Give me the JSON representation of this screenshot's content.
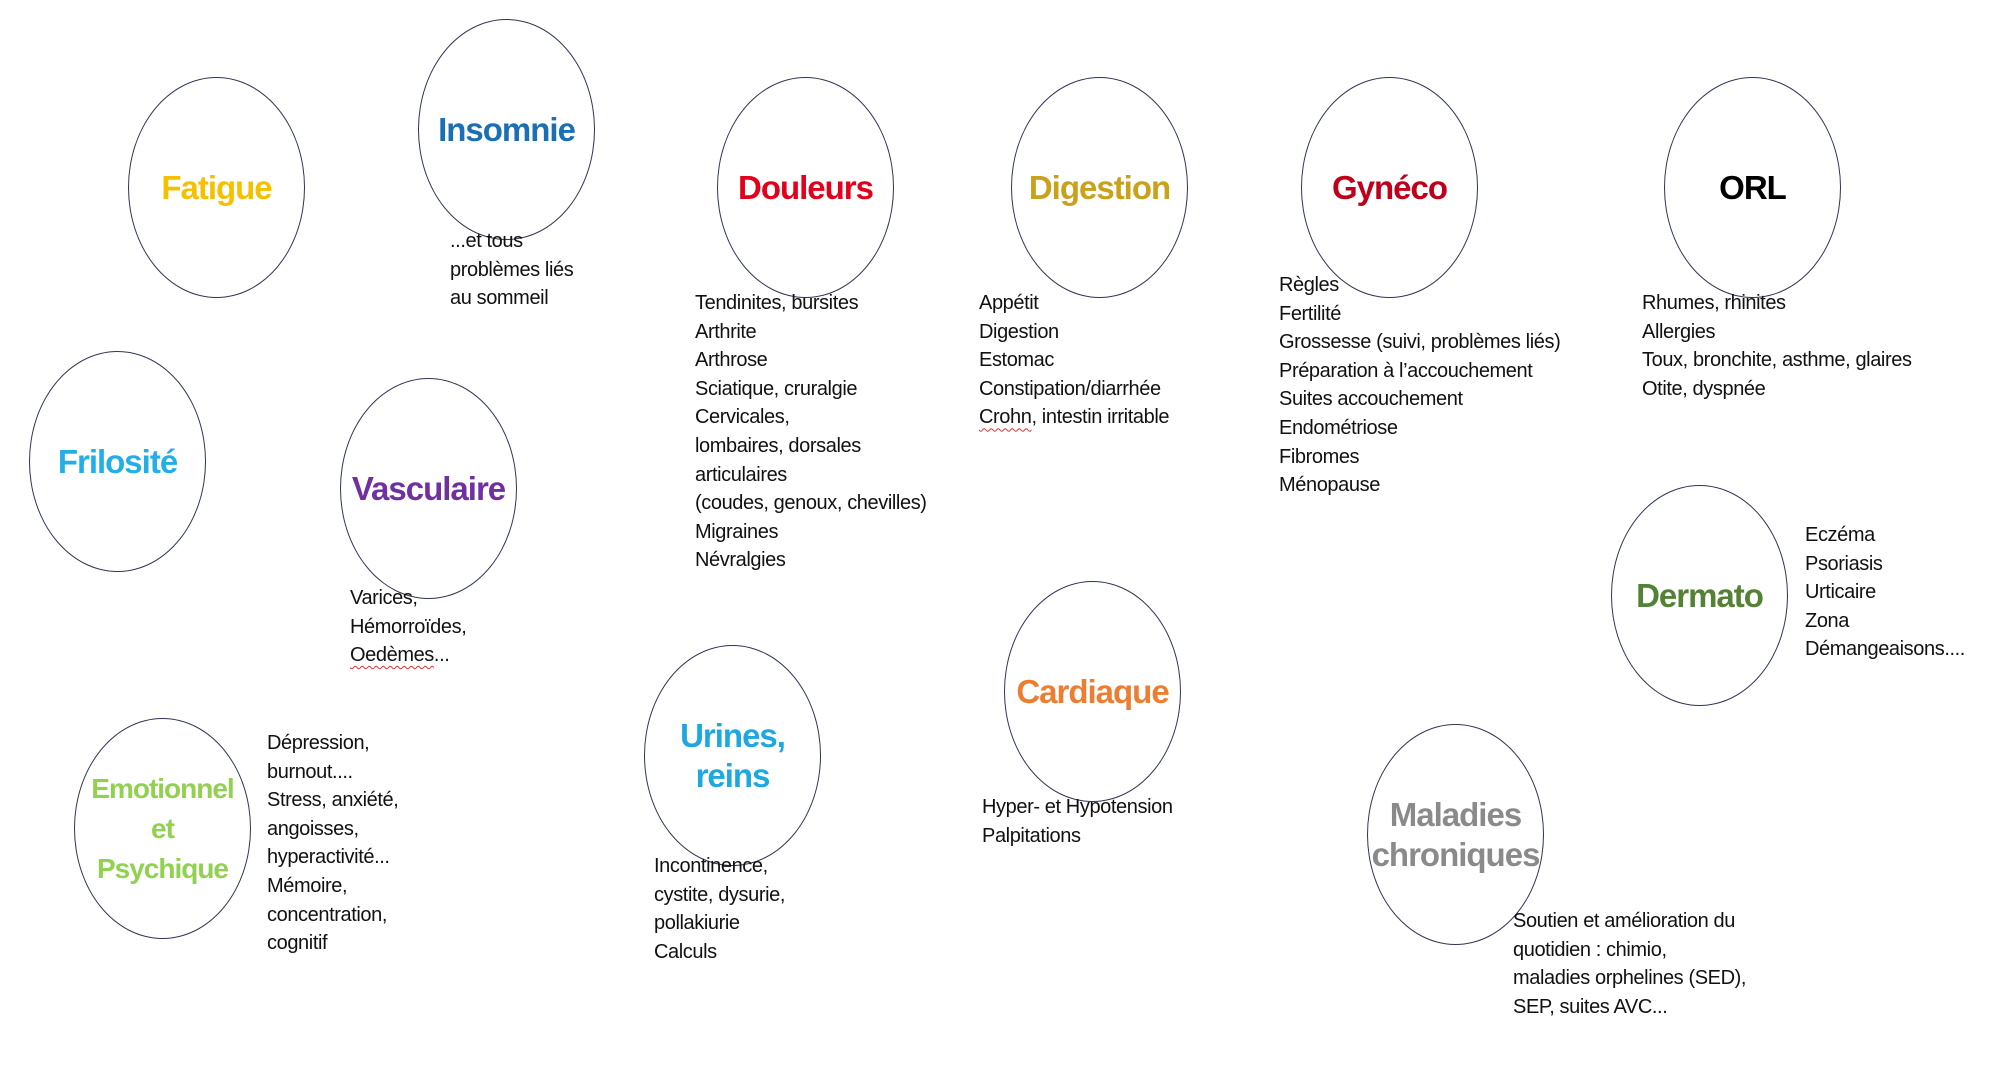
{
  "topics": [
    {
      "id": "fatigue",
      "title": [
        "Fatigue"
      ],
      "color": "#f5c000",
      "lines": []
    },
    {
      "id": "insomnie",
      "title": [
        "Insomnie"
      ],
      "color": "#1a6fb5",
      "lines": [
        "...et tous",
        "problèmes liés",
        "au sommeil"
      ]
    },
    {
      "id": "douleurs",
      "title": [
        "Douleurs"
      ],
      "color": "#e3001b",
      "lines": [
        "Tendinites, bursites",
        "Arthrite",
        "Arthrose",
        "Sciatique, cruralgie",
        "Cervicales,",
        "lombaires, dorsales",
        "articulaires",
        "(coudes, genoux, chevilles)",
        "Migraines",
        "Névralgies"
      ]
    },
    {
      "id": "digestion",
      "title": [
        "Digestion"
      ],
      "color": "#c9a11a",
      "lines": [
        "Appétit",
        "Digestion",
        "Estomac",
        "Constipation/diarrhée",
        "Crohn, intestin irritable"
      ]
    },
    {
      "id": "gyneco",
      "title": [
        "Gynéco"
      ],
      "color": "#c0001a",
      "lines": [
        "Règles",
        "Fertilité",
        "Grossesse (suivi, problèmes liés)",
        "Préparation à l’accouchement",
        "Suites accouchement",
        "Endométriose",
        "Fibromes",
        "Ménopause"
      ]
    },
    {
      "id": "orl",
      "title": [
        "ORL"
      ],
      "color": "#000000",
      "lines": [
        "Rhumes, rhinites",
        "Allergies",
        "Toux, bronchite, asthme, glaires",
        "Otite, dyspnée"
      ]
    },
    {
      "id": "frilosite",
      "title": [
        "Frilosité"
      ],
      "color": "#22aee6",
      "lines": []
    },
    {
      "id": "vasculaire",
      "title": [
        "Vasculaire"
      ],
      "color": "#7030a0",
      "lines": [
        "Varices,",
        "Hémorroïdes,",
        "Oedèmes..."
      ]
    },
    {
      "id": "dermato",
      "title": [
        "Dermato"
      ],
      "color": "#538135",
      "lines": [
        "Eczéma",
        "Psoriasis",
        "Urticaire",
        "Zona",
        "Démangeaisons...."
      ]
    },
    {
      "id": "cardiaque",
      "title": [
        "Cardiaque"
      ],
      "color": "#ed7d31",
      "lines": [
        "Hyper- et Hypotension",
        "Palpitations"
      ]
    },
    {
      "id": "urines",
      "title": [
        "Urines,",
        "reins"
      ],
      "color": "#1fa8e0",
      "lines": [
        "Incontinence,",
        "cystite, dysurie,",
        "pollakiurie",
        "Calculs"
      ]
    },
    {
      "id": "emotionnel",
      "title": [
        "Emotionnel",
        "et",
        "Psychique"
      ],
      "color": "#92d050",
      "lines": [
        "Dépression,",
        "burnout....",
        "Stress, anxiété,",
        "angoisses,",
        "hyperactivité...",
        "Mémoire,",
        "concentration,",
        "cognitif"
      ]
    },
    {
      "id": "maladies",
      "title": [
        "Maladies",
        "chroniques"
      ],
      "color": "#8a8a8a",
      "lines": [
        "Soutien et amélioration du",
        "quotidien : chimio,",
        "maladies orphelines (SED),",
        "SEP, suites AVC..."
      ]
    }
  ]
}
